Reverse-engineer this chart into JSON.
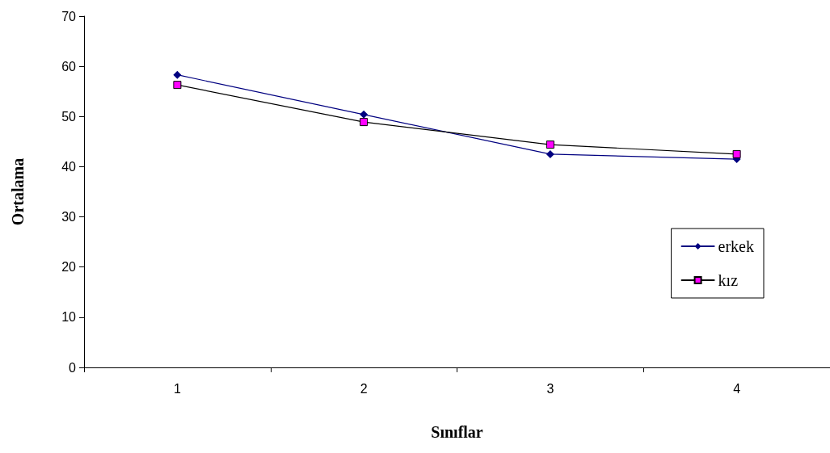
{
  "chart_data": {
    "type": "line",
    "xlabel": "Sınıflar",
    "ylabel": "Ortalama",
    "categories": [
      "1",
      "2",
      "3",
      "4"
    ],
    "series": [
      {
        "name": "erkek",
        "color": "#000080",
        "values": [
          58.3,
          50.4,
          42.5,
          41.5
        ],
        "marker": "diamond"
      },
      {
        "name": "kız",
        "color": "#ff00ff",
        "values": [
          56.3,
          48.9,
          44.4,
          42.5
        ],
        "marker": "square"
      }
    ],
    "ylim": [
      0,
      70
    ],
    "yticks": [
      0,
      10,
      20,
      30,
      40,
      50,
      60,
      70
    ],
    "grid": false,
    "legend": "right",
    "line_style": "solid"
  }
}
